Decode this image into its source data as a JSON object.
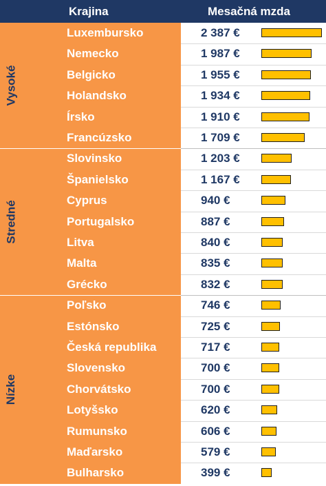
{
  "header": {
    "country_label": "Krajina",
    "wage_label": "Mesačná mzda"
  },
  "groups": [
    {
      "label": "Vysoké",
      "start": 0,
      "end": 5
    },
    {
      "label": "Stredné",
      "start": 6,
      "end": 12
    },
    {
      "label": "Nízke",
      "start": 13,
      "end": 21
    }
  ],
  "chart_data": {
    "type": "bar",
    "orientation": "horizontal",
    "categories": [
      "Luxembursko",
      "Nemecko",
      "Belgicko",
      "Holandsko",
      "Írsko",
      "Francúzsko",
      "Slovinsko",
      "Španielsko",
      "Cyprus",
      "Portugalsko",
      "Litva",
      "Malta",
      "Grécko",
      "Poľsko",
      "Estónsko",
      "Česká republika",
      "Slovensko",
      "Chorvátsko",
      "Lotyšsko",
      "Rumunsko",
      "Maďarsko",
      "Bulharsko"
    ],
    "values": [
      2387,
      1987,
      1955,
      1934,
      1910,
      1709,
      1203,
      1167,
      940,
      887,
      840,
      835,
      832,
      746,
      725,
      717,
      700,
      700,
      620,
      606,
      579,
      399
    ],
    "value_labels": [
      "2 387 €",
      "1 987 €",
      "1 955 €",
      "1 934 €",
      "1 910 €",
      "1 709 €",
      "1 203 €",
      "1 167 €",
      "940 €",
      "887 €",
      "840 €",
      "835 €",
      "832 €",
      "746 €",
      "725 €",
      "717 €",
      "700 €",
      "700 €",
      "620 €",
      "606 €",
      "579 €",
      "399 €"
    ],
    "xlim": [
      0,
      2387
    ],
    "colors": {
      "bar": "#ffc000",
      "group_bg": "#f79646",
      "header_bg": "#1f3864",
      "text_dark": "#1f3864"
    }
  }
}
